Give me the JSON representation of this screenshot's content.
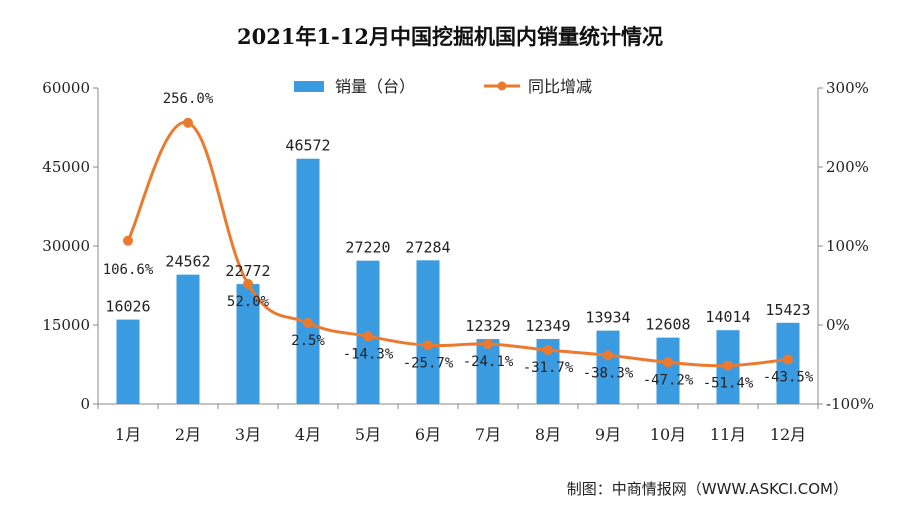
{
  "chart_data": {
    "type": "bar",
    "title": "2021年1-12月中国挖掘机国内销量统计情况",
    "categories": [
      "1月",
      "2月",
      "3月",
      "4月",
      "5月",
      "6月",
      "7月",
      "8月",
      "9月",
      "10月",
      "11月",
      "12月"
    ],
    "series": [
      {
        "name": "销量（台）",
        "type": "bar",
        "axis": "left",
        "color": "#3b9be0",
        "values": [
          16026,
          24562,
          22772,
          46572,
          27220,
          27284,
          12329,
          12349,
          13934,
          12608,
          14014,
          15423
        ]
      },
      {
        "name": "同比增减",
        "type": "line",
        "axis": "right",
        "color": "#ec7a2e",
        "values": [
          106.6,
          256.0,
          52.0,
          2.5,
          -14.3,
          -25.7,
          -24.1,
          -31.7,
          -38.3,
          -47.2,
          -51.4,
          -43.5
        ],
        "labels": [
          "106.6%",
          "256.0%",
          "52.0%",
          "2.5%",
          "-14.3%",
          "-25.7%",
          "-24.1%",
          "-31.7%",
          "-38.3%",
          "-47.2%",
          "-51.4%",
          "-43.5%"
        ]
      }
    ],
    "y_left": {
      "ylim": [
        0,
        60000
      ],
      "ticks": [
        "0",
        "15000",
        "30000",
        "45000",
        "60000"
      ]
    },
    "y_right": {
      "ylim": [
        -100,
        300
      ],
      "ticks": [
        "-100%",
        "0%",
        "100%",
        "200%",
        "300%"
      ]
    },
    "legend_position": "top-center",
    "grid": false
  },
  "source": "制图：中商情报网（WWW.ASKCI.COM）"
}
